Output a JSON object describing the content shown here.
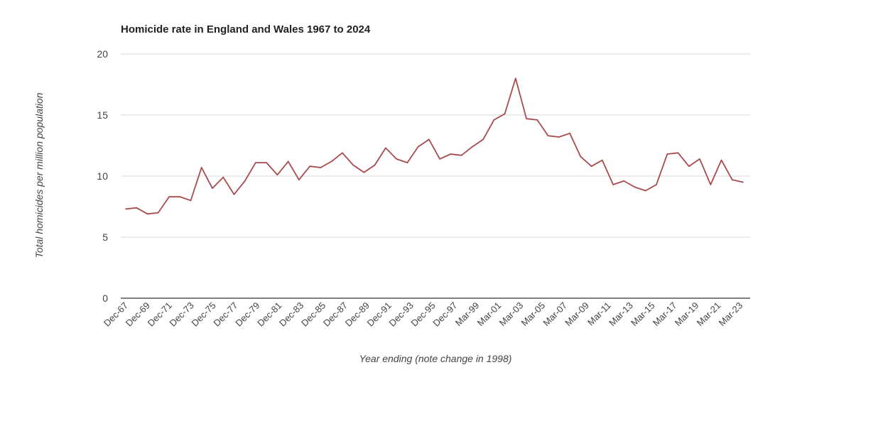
{
  "chart_data": {
    "type": "line",
    "title": "Homicide rate in England and Wales 1967 to 2024",
    "xlabel": "Year ending (note change in 1998)",
    "ylabel": "Total homicides per million population",
    "ylim": [
      0,
      20
    ],
    "yticks": [
      0,
      5,
      10,
      15,
      20
    ],
    "grid": true,
    "line_color": "#a94a4e",
    "grid_color": "#d9d9d9",
    "axis_color": "#333333",
    "x_tick_labels": [
      "Dec-67",
      "Dec-69",
      "Dec-71",
      "Dec-73",
      "Dec-75",
      "Dec-77",
      "Dec-79",
      "Dec-81",
      "Dec-83",
      "Dec-85",
      "Dec-87",
      "Dec-89",
      "Dec-91",
      "Dec-93",
      "Dec-95",
      "Dec-97",
      "Mar-99",
      "Mar-01",
      "Mar-03",
      "Mar-05",
      "Mar-07",
      "Mar-09",
      "Mar-11",
      "Mar-13",
      "Mar-15",
      "Mar-17",
      "Mar-19",
      "Mar-21",
      "Mar-23"
    ],
    "series": [
      {
        "values": [
          7.3,
          7.4,
          6.9,
          7.0,
          8.3,
          8.3,
          8.0,
          10.7,
          9.0,
          9.9,
          8.5,
          9.6,
          11.1,
          11.1,
          10.1,
          11.2,
          9.7,
          10.8,
          10.7,
          11.2,
          11.9,
          10.9,
          10.3,
          10.9,
          12.3,
          11.4,
          11.1,
          12.4,
          13.0,
          11.4,
          11.8,
          11.7,
          12.4,
          13.0,
          14.6,
          15.1,
          18.0,
          14.7,
          14.6,
          13.3,
          13.2,
          13.5,
          11.6,
          10.8,
          11.3,
          9.3,
          9.6,
          9.1,
          8.8,
          9.3,
          11.8,
          11.9,
          10.8,
          11.4,
          9.3,
          11.3,
          9.7,
          9.5
        ]
      }
    ]
  }
}
